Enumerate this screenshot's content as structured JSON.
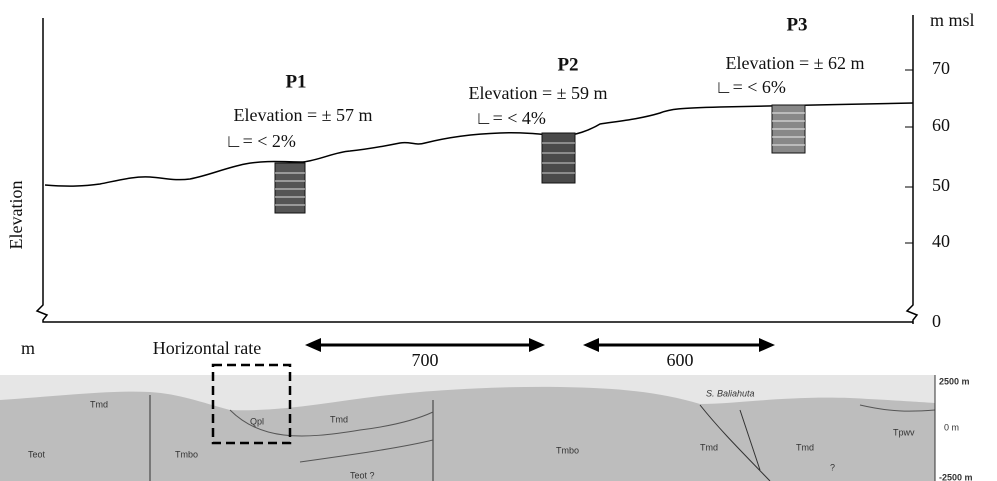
{
  "unit_label": "m msl",
  "y_ticks": [
    "70",
    "60",
    "50",
    "40",
    "0"
  ],
  "y_axis_label": "Elevation",
  "points": [
    {
      "name": "P1",
      "elevation": "Elevation = ± 57 m",
      "slope": "∟= < 2%"
    },
    {
      "name": "P2",
      "elevation": "Elevation = ± 59 m",
      "slope": "∟= < 4%"
    },
    {
      "name": "P3",
      "elevation": "Elevation = ± 62 m",
      "slope": "∟= < 6%"
    }
  ],
  "x_unit": "m",
  "x_label": "Horizontal rate",
  "distances": [
    "700",
    "600"
  ],
  "section": {
    "labels": [
      "Teot",
      "Tmd",
      "Tmbo",
      "Qpl",
      "Tmd",
      "Teot ?",
      "Tmbo",
      "Tmd",
      "Tmd",
      "Tpwv",
      "?",
      "S. Baliahuta"
    ],
    "scale": [
      "2500 m",
      "0 m",
      "-2500 m"
    ]
  }
}
